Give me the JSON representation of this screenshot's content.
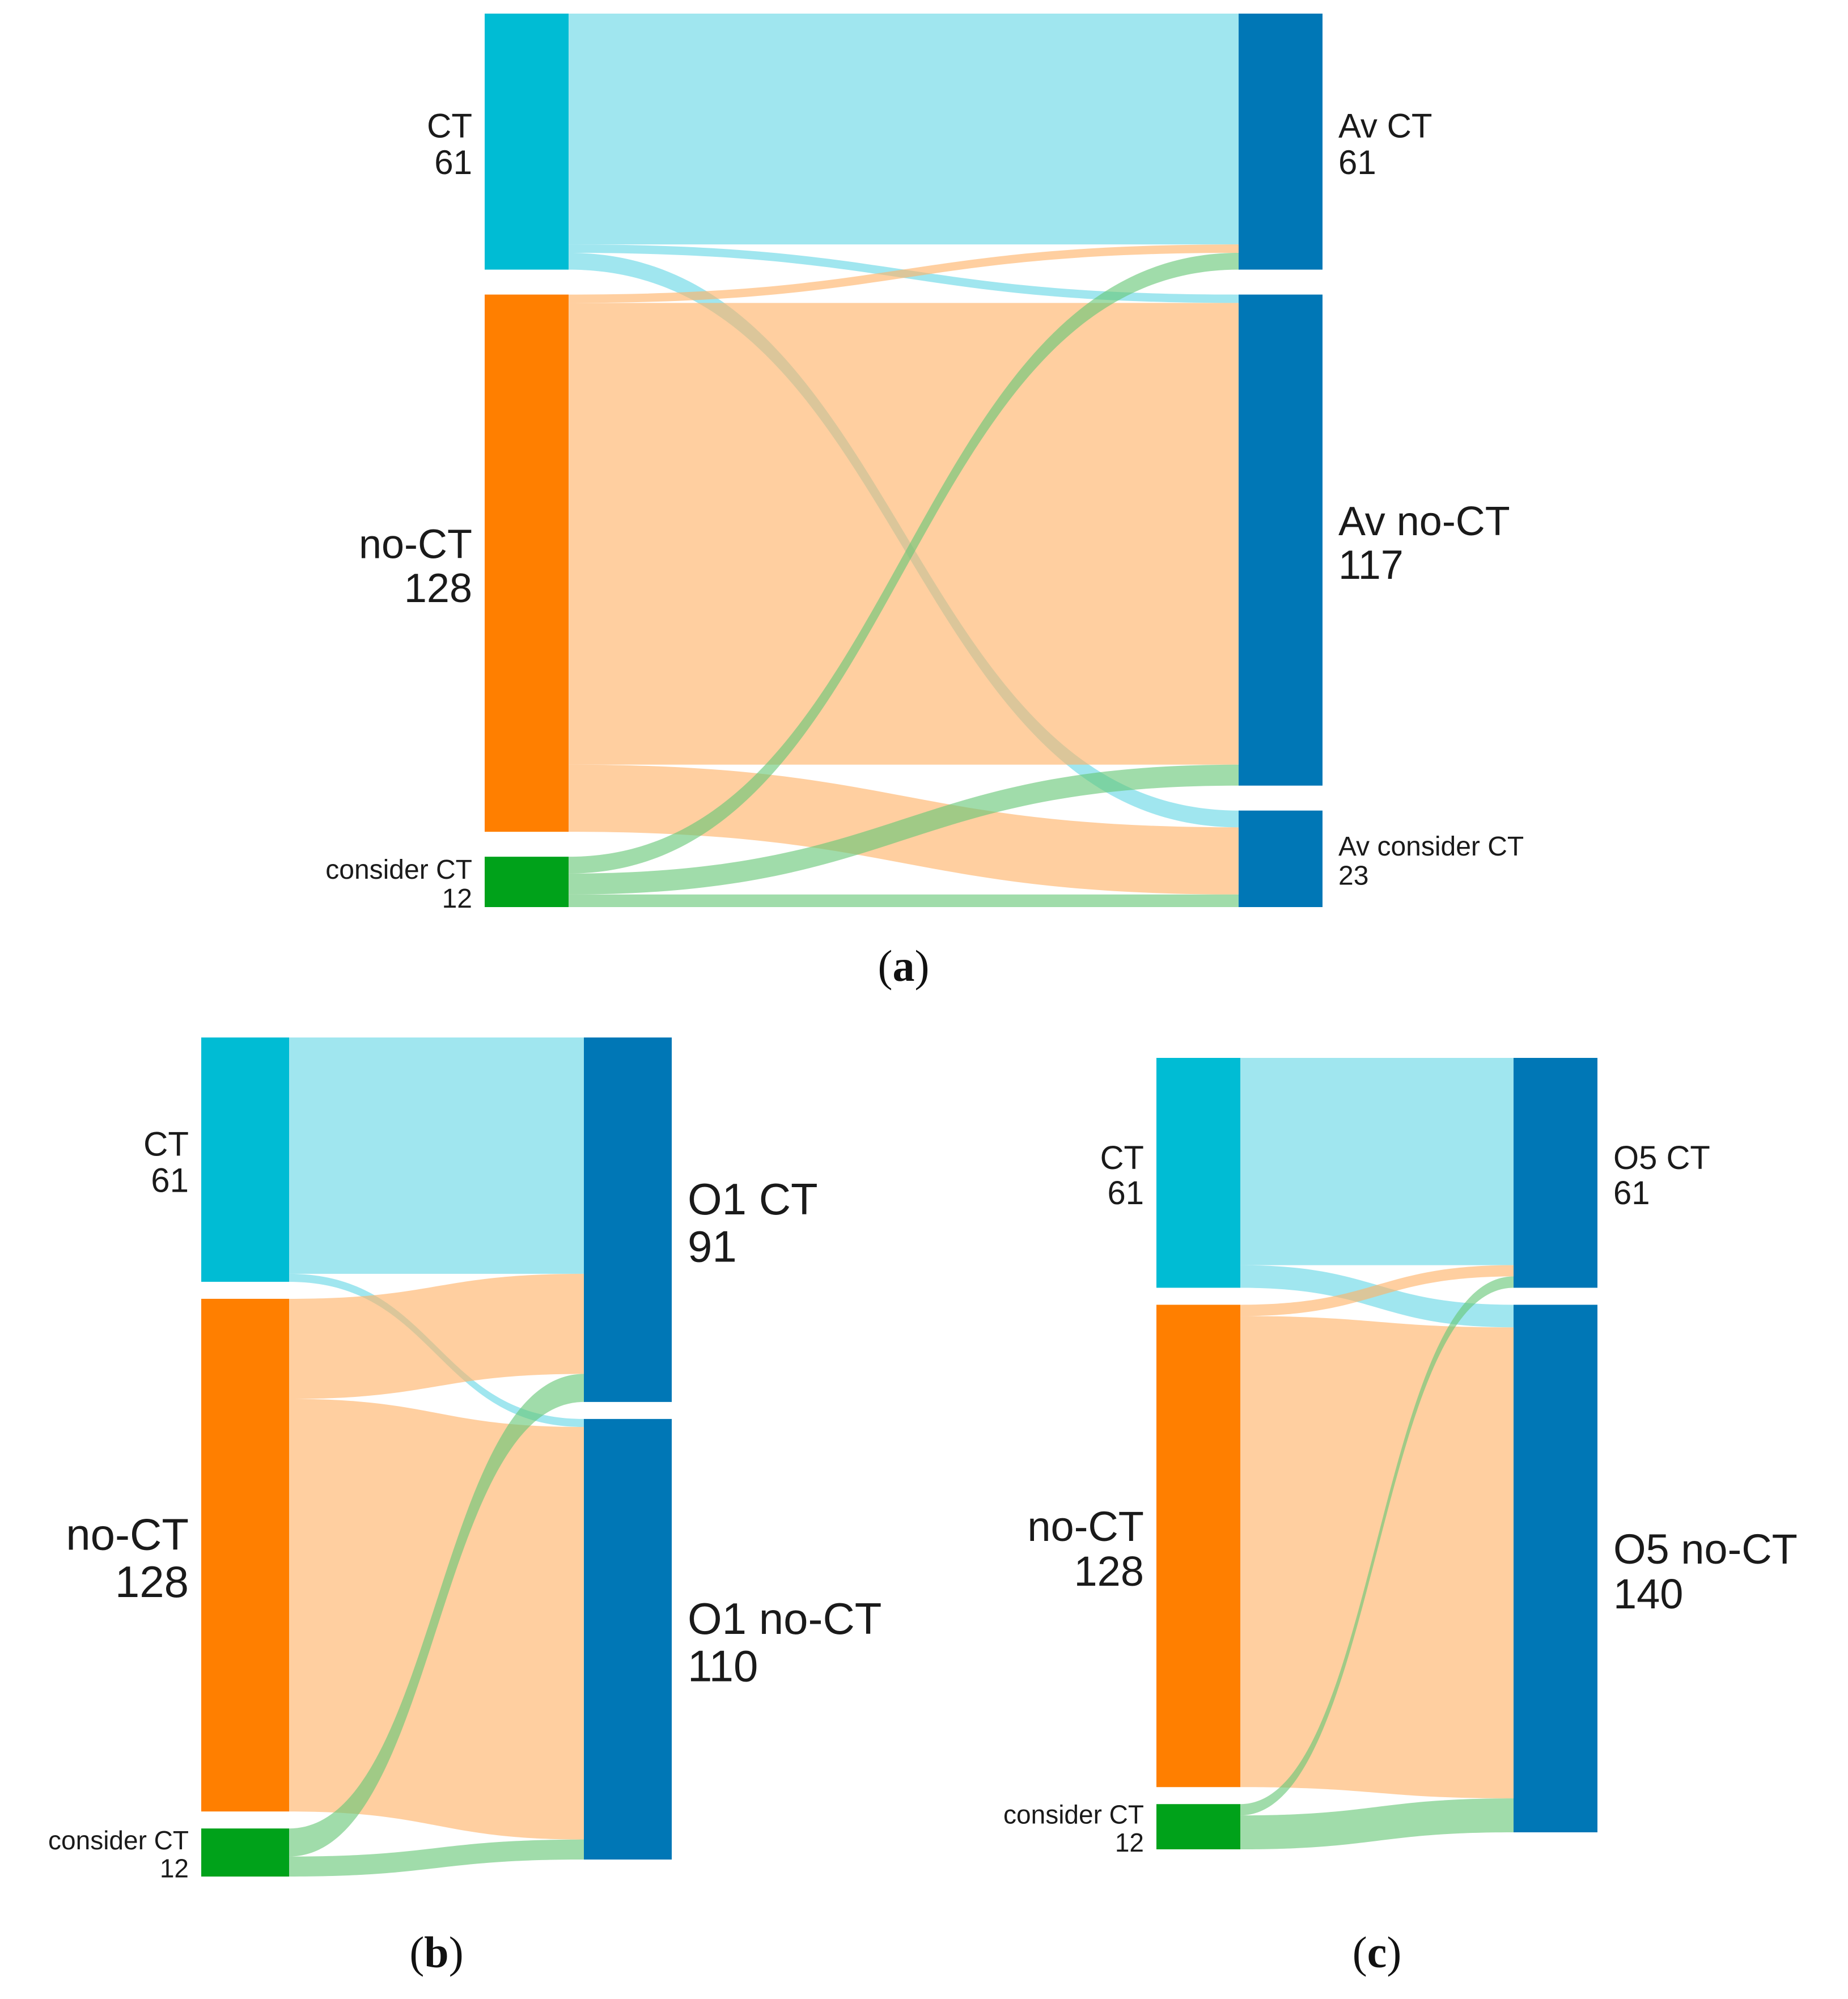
{
  "panels": [
    {
      "id": "a",
      "label": "a",
      "colors": {
        "left": [
          "#00bcd4",
          "#ff7f00",
          "#00a21a"
        ],
        "right": "#0077b6"
      },
      "left_nodes": [
        {
          "name": "CT",
          "value": "61"
        },
        {
          "name": "no-CT",
          "value": "128"
        },
        {
          "name": "consider CT",
          "value": "12"
        }
      ],
      "right_nodes": [
        {
          "name": "Av CT",
          "value": "61"
        },
        {
          "name": "Av no-CT",
          "value": "117"
        },
        {
          "name": "Av consider CT",
          "value": "23"
        }
      ],
      "flows": [
        {
          "from": 0,
          "to": 0,
          "value": 55
        },
        {
          "from": 0,
          "to": 1,
          "value": 2
        },
        {
          "from": 0,
          "to": 2,
          "value": 4
        },
        {
          "from": 1,
          "to": 0,
          "value": 2
        },
        {
          "from": 1,
          "to": 1,
          "value": 110
        },
        {
          "from": 1,
          "to": 2,
          "value": 16
        },
        {
          "from": 2,
          "to": 0,
          "value": 4
        },
        {
          "from": 2,
          "to": 1,
          "value": 5
        },
        {
          "from": 2,
          "to": 2,
          "value": 3
        }
      ]
    },
    {
      "id": "b",
      "label": "b",
      "colors": {
        "left": [
          "#00bcd4",
          "#ff7f00",
          "#00a21a"
        ],
        "right": "#0077b6"
      },
      "left_nodes": [
        {
          "name": "CT",
          "value": "61"
        },
        {
          "name": "no-CT",
          "value": "128"
        },
        {
          "name": "consider CT",
          "value": "12"
        }
      ],
      "right_nodes": [
        {
          "name": "O1 CT",
          "value": "91"
        },
        {
          "name": "O1 no-CT",
          "value": "110"
        }
      ],
      "flows": [
        {
          "from": 0,
          "to": 0,
          "value": 59
        },
        {
          "from": 0,
          "to": 1,
          "value": 2
        },
        {
          "from": 1,
          "to": 0,
          "value": 25
        },
        {
          "from": 1,
          "to": 1,
          "value": 103
        },
        {
          "from": 2,
          "to": 0,
          "value": 7
        },
        {
          "from": 2,
          "to": 1,
          "value": 5
        }
      ]
    },
    {
      "id": "c",
      "label": "c",
      "colors": {
        "left": [
          "#00bcd4",
          "#ff7f00",
          "#00a21a"
        ],
        "right": "#0077b6"
      },
      "left_nodes": [
        {
          "name": "CT",
          "value": "61"
        },
        {
          "name": "no-CT",
          "value": "128"
        },
        {
          "name": "consider CT",
          "value": "12"
        }
      ],
      "right_nodes": [
        {
          "name": "O5 CT",
          "value": "61"
        },
        {
          "name": "O5 no-CT",
          "value": "140"
        }
      ],
      "flows": [
        {
          "from": 0,
          "to": 0,
          "value": 55
        },
        {
          "from": 0,
          "to": 1,
          "value": 6
        },
        {
          "from": 1,
          "to": 0,
          "value": 3
        },
        {
          "from": 1,
          "to": 1,
          "value": 125
        },
        {
          "from": 2,
          "to": 0,
          "value": 3
        },
        {
          "from": 2,
          "to": 1,
          "value": 9
        }
      ]
    }
  ]
}
